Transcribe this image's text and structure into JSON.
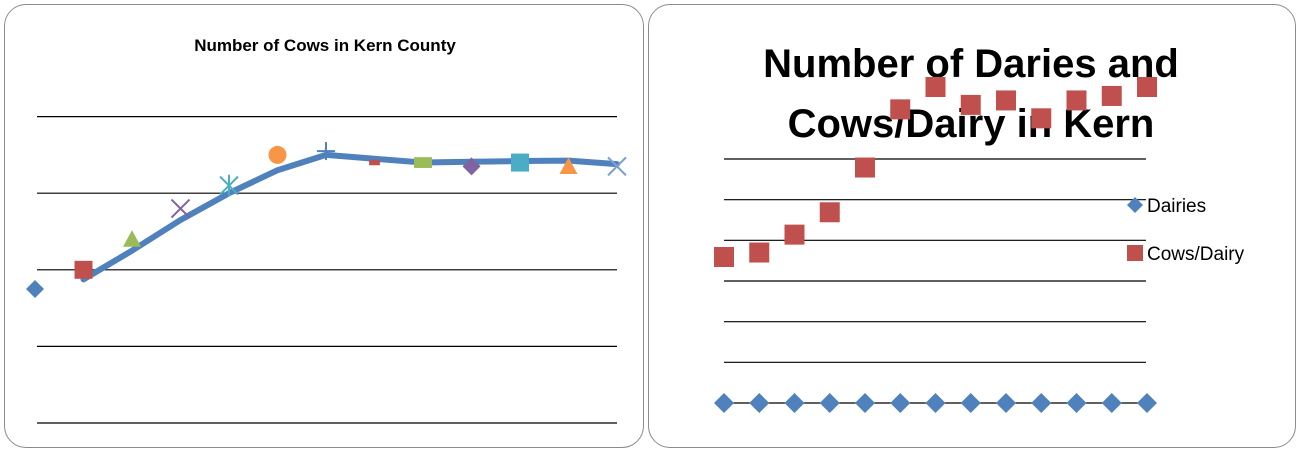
{
  "colors": {
    "cow_line": "#4f81bd",
    "dairies": "#4f81bd",
    "cows_per_dairy": "#c0504d",
    "gridline": "#000000",
    "marker_palette": [
      "#4f81bd",
      "#c0504d",
      "#9bbb59",
      "#8064a2",
      "#4bacc6",
      "#f79646",
      "#4f81bd",
      "#c0504d",
      "#9bbb59",
      "#8064a2",
      "#4bacc6",
      "#f79646",
      "#7f9fcf"
    ],
    "marker_shapes": [
      "diamond",
      "square",
      "triangle",
      "x",
      "asterisk",
      "circle",
      "plus",
      "dash",
      "rect",
      "diamond",
      "square",
      "triangle",
      "x"
    ]
  },
  "chart_data": [
    {
      "type": "line",
      "title": "Number of Cows in Kern County",
      "xlabel": "",
      "ylabel": "",
      "grid": true,
      "legend": "none",
      "ylim": [
        0,
        100
      ],
      "y_gridlines": [
        0,
        20,
        40,
        60,
        80
      ],
      "x_count": 13,
      "markers": [
        35,
        40,
        48,
        56,
        62,
        70,
        71,
        68,
        68,
        67,
        68,
        67,
        67
      ],
      "line_x": [
        1,
        2,
        3,
        4,
        5,
        6,
        7,
        8,
        9,
        10,
        11,
        12
      ],
      "line": [
        37.5,
        45,
        53,
        60,
        66,
        70,
        69,
        68,
        68.2,
        68.4,
        68.5,
        67.6
      ]
    },
    {
      "type": "scatter",
      "title": "Number of Daries and Cows/Dairy in Kern",
      "xlabel": "",
      "ylabel": "",
      "grid": true,
      "legend": "right",
      "ylim": [
        0,
        140
      ],
      "y_gridlines": [
        20,
        40,
        60,
        80,
        100,
        120,
        140
      ],
      "x": [
        1,
        2,
        3,
        4,
        5,
        6,
        7,
        8,
        9,
        10,
        11,
        12,
        13
      ],
      "series": [
        {
          "name": "Dairies",
          "marker": "diamond",
          "values": [
            20,
            20,
            20,
            20,
            20,
            20,
            20,
            20,
            20,
            20,
            20,
            20,
            20
          ]
        },
        {
          "name": "Cows/Dairy",
          "marker": "square",
          "values": [
            100,
            101,
            105,
            110,
            120,
            133,
            138,
            134,
            135,
            131,
            135,
            136,
            138
          ]
        }
      ]
    }
  ]
}
